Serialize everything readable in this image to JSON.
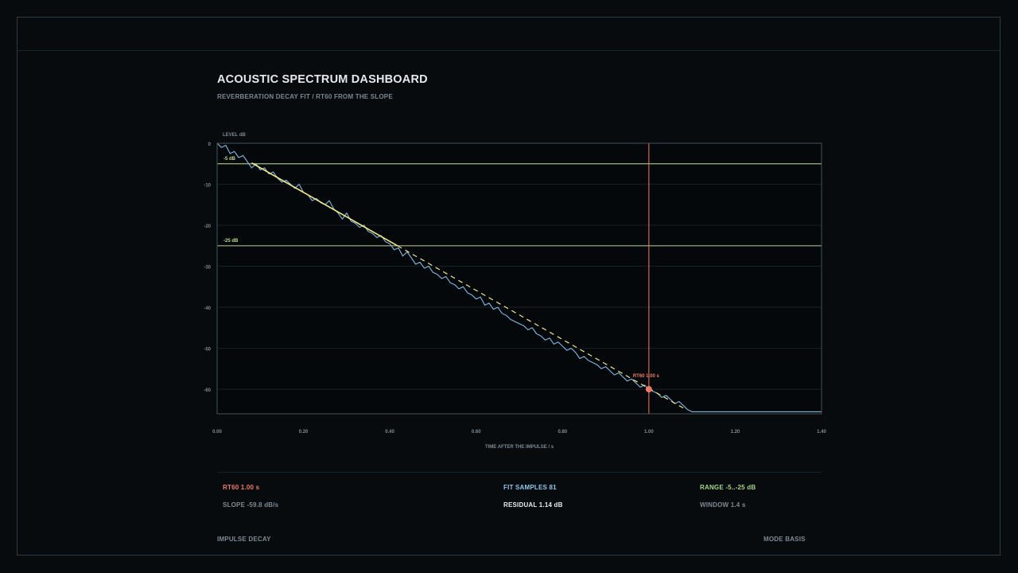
{
  "page": {
    "title": "ACOUSTIC SPECTRUM DASHBOARD",
    "subtitle": "REVERBERATION DECAY FIT / RT60 FROM THE SLOPE"
  },
  "stats": {
    "rt60": "RT60  1.00 s",
    "slope": "SLOPE  -59.8 dB/s",
    "fit_samples": "FIT SAMPLES  81",
    "residual": "RESIDUAL  1.14 dB",
    "range": "RANGE -5..-25 dB",
    "window": "WINDOW 1.4 s"
  },
  "footer": {
    "left": "IMPULSE DECAY",
    "right": "MODE BASIS"
  },
  "colors": {
    "background": "#070b0e",
    "decay_curve": "#7fb8e0",
    "fit_line": "#f2e98a",
    "threshold": "#bcd89a",
    "rt60_marker": "#f07a6a",
    "axis": "#44525b",
    "grid": "#162027"
  },
  "chart_data": {
    "type": "line",
    "xlabel": "TIME AFTER THE IMPULSE / s",
    "ylabel": "LEVEL dB",
    "xlim": [
      0,
      1.4
    ],
    "ylim": [
      -66,
      0
    ],
    "x_ticks": [
      0.0,
      0.2,
      0.4,
      0.6,
      0.8,
      1.0,
      1.2,
      1.4
    ],
    "x_tick_labels": [
      "0.00",
      "0.20",
      "0.40",
      "0.60",
      "0.80",
      "1.00",
      "1.20",
      "1.40"
    ],
    "y_ticks": [
      0,
      -10,
      -20,
      -30,
      -40,
      -50,
      -60
    ],
    "y_tick_labels": [
      "0",
      "-10",
      "-20",
      "-30",
      "-40",
      "-50",
      "-60"
    ],
    "grid": true,
    "series": [
      {
        "role": "decay",
        "x": [
          0.0,
          0.01,
          0.02,
          0.03,
          0.04,
          0.05,
          0.06,
          0.07,
          0.08,
          0.09,
          0.1,
          0.11,
          0.12,
          0.13,
          0.14,
          0.15,
          0.16,
          0.17,
          0.18,
          0.19,
          0.2,
          0.21,
          0.22,
          0.23,
          0.24,
          0.25,
          0.26,
          0.27,
          0.28,
          0.29,
          0.3,
          0.31,
          0.32,
          0.33,
          0.34,
          0.35,
          0.36,
          0.37,
          0.38,
          0.39,
          0.4,
          0.41,
          0.42,
          0.43,
          0.44,
          0.45,
          0.46,
          0.47,
          0.48,
          0.49,
          0.5,
          0.51,
          0.52,
          0.53,
          0.54,
          0.55,
          0.56,
          0.57,
          0.58,
          0.59,
          0.6,
          0.61,
          0.62,
          0.63,
          0.64,
          0.65,
          0.66,
          0.67,
          0.68,
          0.69,
          0.7,
          0.71,
          0.72,
          0.73,
          0.74,
          0.75,
          0.76,
          0.77,
          0.78,
          0.79,
          0.8,
          0.81,
          0.82,
          0.83,
          0.84,
          0.85,
          0.86,
          0.87,
          0.88,
          0.89,
          0.9,
          0.91,
          0.92,
          0.93,
          0.94,
          0.95,
          0.96,
          0.97,
          0.98,
          0.99,
          1.0,
          1.01,
          1.02,
          1.03,
          1.04,
          1.05,
          1.06,
          1.07,
          1.08,
          1.09,
          1.1,
          1.12,
          1.2,
          1.3,
          1.4
        ],
        "y": [
          0.0,
          -1.0,
          -0.5,
          -2.5,
          -2.0,
          -3.5,
          -3.0,
          -4.5,
          -6.0,
          -5.0,
          -6.5,
          -6.0,
          -7.5,
          -7.0,
          -8.5,
          -9.5,
          -9.0,
          -10.0,
          -11.0,
          -10.0,
          -12.0,
          -12.5,
          -14.0,
          -13.5,
          -14.5,
          -15.0,
          -14.0,
          -16.0,
          -17.0,
          -18.5,
          -17.0,
          -19.0,
          -19.5,
          -20.5,
          -20.0,
          -21.5,
          -22.0,
          -23.0,
          -22.5,
          -24.0,
          -24.5,
          -26.0,
          -25.5,
          -27.5,
          -26.5,
          -28.0,
          -29.5,
          -29.0,
          -30.5,
          -30.0,
          -31.5,
          -32.0,
          -33.0,
          -32.5,
          -34.0,
          -34.5,
          -35.5,
          -35.0,
          -36.5,
          -37.0,
          -38.0,
          -37.5,
          -39.5,
          -39.0,
          -40.5,
          -40.0,
          -41.5,
          -42.0,
          -43.0,
          -43.5,
          -44.0,
          -44.5,
          -45.5,
          -45.0,
          -46.5,
          -47.0,
          -48.0,
          -47.5,
          -49.0,
          -48.5,
          -49.5,
          -50.5,
          -50.0,
          -51.0,
          -52.5,
          -52.0,
          -53.0,
          -53.5,
          -54.0,
          -55.0,
          -54.5,
          -55.5,
          -56.5,
          -56.0,
          -57.0,
          -58.0,
          -57.5,
          -58.5,
          -59.5,
          -59.0,
          -60.0,
          -60.5,
          -61.0,
          -62.0,
          -61.5,
          -62.5,
          -63.5,
          -63.0,
          -64.0,
          -65.0,
          -65.5,
          -65.5,
          -65.5,
          -65.5,
          -65.5
        ]
      },
      {
        "role": "fit",
        "x": [
          0.08,
          1.08
        ],
        "y": [
          -4.8,
          -64.6
        ]
      }
    ],
    "thresholds": [
      {
        "label": "-5 dB",
        "y": -5
      },
      {
        "label": "-25 dB",
        "y": -25
      }
    ],
    "marker": {
      "x": 1.0,
      "y": -60,
      "label": "RT60 1.00 s"
    }
  }
}
